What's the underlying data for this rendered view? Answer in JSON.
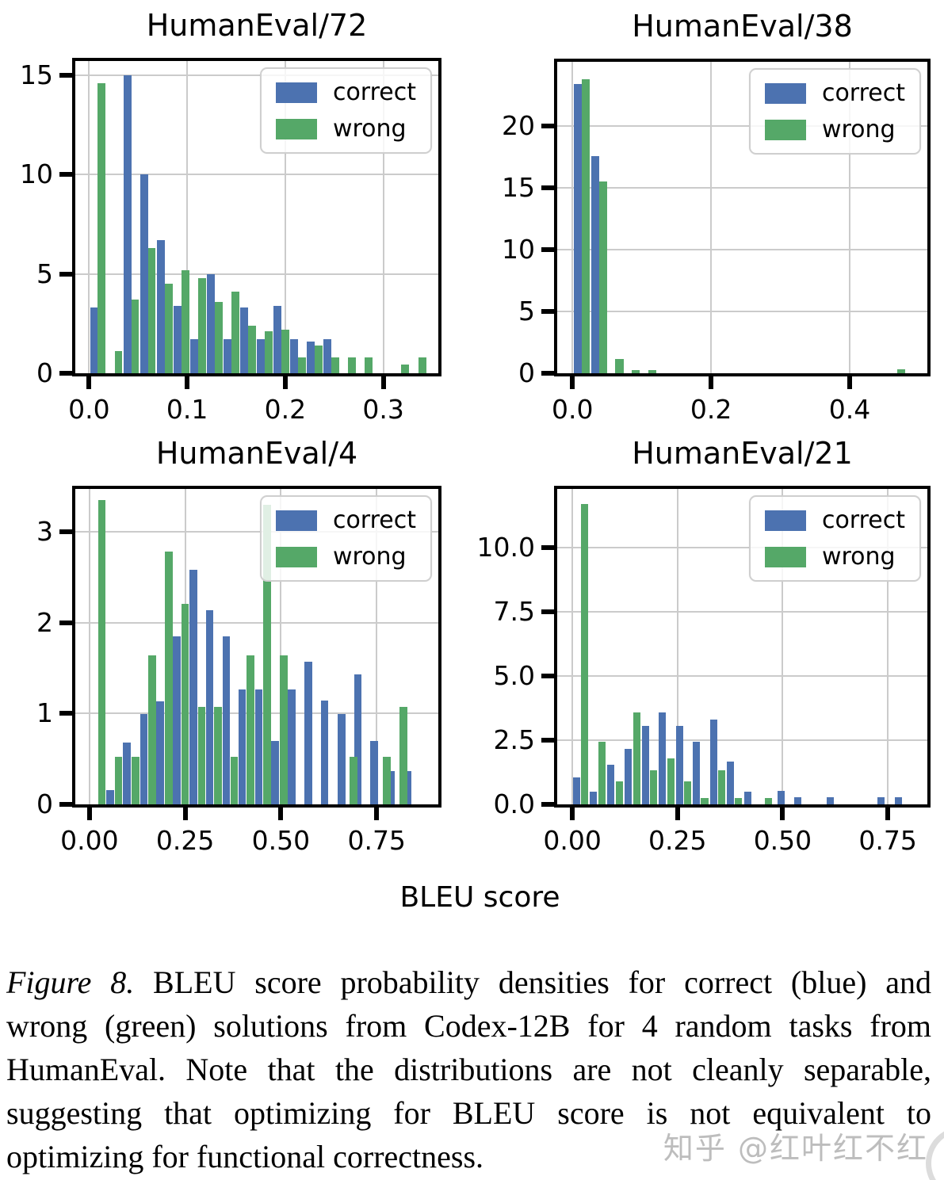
{
  "figure": {
    "xlabel": "BLEU score",
    "caption": {
      "prefix": "Figure 8.",
      "lines": [
        "BLEU score probability densities for correct (blue) and",
        "wrong (green) solutions from Codex-12B for 4 random tasks from",
        "HumanEval. Note that the distributions are not cleanly separable,",
        "suggesting that optimizing for BLEU score is not equivalent to",
        "optimizing for functional correctness."
      ]
    },
    "watermark": "知乎 @红叶红不红"
  },
  "legend_labels": {
    "correct": "correct",
    "wrong": "wrong"
  },
  "colors": {
    "correct": "#4C72B0",
    "wrong": "#55A868",
    "grid": "#cbcbcb",
    "axis": "#000000",
    "watermark": "#bdbdbd"
  },
  "chart_data": [
    {
      "type": "bar",
      "title": "HumanEval/72",
      "xlabel": "BLEU score",
      "ylabel": "",
      "grid": true,
      "legend_position": "upper right",
      "legend": [
        "correct",
        "wrong"
      ],
      "xlim": [
        -0.014,
        0.356
      ],
      "ylim": [
        0,
        15.7
      ],
      "xtick_vals": [
        0.0,
        0.1,
        0.2,
        0.3
      ],
      "xtick_labels": [
        "0.0",
        "0.1",
        "0.2",
        "0.3"
      ],
      "ytick_vals": [
        0,
        5,
        10,
        15
      ],
      "ytick_labels": [
        "0",
        "5",
        "10",
        "15"
      ],
      "bar_width": 0.008,
      "series": [
        {
          "name": "correct",
          "color": "#4C72B0",
          "bars": [
            [
              0.001,
              3.3
            ],
            [
              0.035,
              15.0
            ],
            [
              0.052,
              10.0
            ],
            [
              0.069,
              6.7
            ],
            [
              0.086,
              3.4
            ],
            [
              0.103,
              1.7
            ],
            [
              0.12,
              5.0
            ],
            [
              0.137,
              1.7
            ],
            [
              0.154,
              3.3
            ],
            [
              0.171,
              1.7
            ],
            [
              0.188,
              3.4
            ],
            [
              0.205,
              1.7
            ],
            [
              0.222,
              1.6
            ],
            [
              0.239,
              1.7
            ]
          ]
        },
        {
          "name": "wrong",
          "color": "#55A868",
          "bars": [
            [
              0.009,
              14.6
            ],
            [
              0.026,
              1.1
            ],
            [
              0.043,
              3.7
            ],
            [
              0.06,
              6.3
            ],
            [
              0.077,
              4.5
            ],
            [
              0.094,
              5.2
            ],
            [
              0.111,
              4.8
            ],
            [
              0.128,
              3.6
            ],
            [
              0.145,
              4.1
            ],
            [
              0.162,
              2.4
            ],
            [
              0.179,
              2.1
            ],
            [
              0.196,
              2.2
            ],
            [
              0.213,
              0.8
            ],
            [
              0.23,
              1.4
            ],
            [
              0.247,
              0.8
            ],
            [
              0.264,
              0.8
            ],
            [
              0.281,
              0.8
            ],
            [
              0.318,
              0.45
            ],
            [
              0.336,
              0.8
            ]
          ]
        }
      ]
    },
    {
      "type": "bar",
      "title": "HumanEval/38",
      "xlabel": "BLEU score",
      "ylabel": "",
      "grid": true,
      "legend_position": "upper right",
      "legend": [
        "correct",
        "wrong"
      ],
      "xlim": [
        -0.022,
        0.512
      ],
      "ylim": [
        0,
        25.2
      ],
      "xtick_vals": [
        0.0,
        0.2,
        0.4
      ],
      "xtick_labels": [
        "0.0",
        "0.2",
        "0.4"
      ],
      "ytick_vals": [
        0,
        5,
        10,
        15,
        20
      ],
      "ytick_labels": [
        "0",
        "5",
        "10",
        "15",
        "20"
      ],
      "bar_width": 0.0115,
      "series": [
        {
          "name": "correct",
          "color": "#4C72B0",
          "bars": [
            [
              0.002,
              23.4
            ],
            [
              0.027,
              17.6
            ]
          ]
        },
        {
          "name": "wrong",
          "color": "#55A868",
          "bars": [
            [
              0.0135,
              23.8
            ],
            [
              0.0385,
              15.5
            ],
            [
              0.062,
              1.15
            ],
            [
              0.086,
              0.25
            ],
            [
              0.109,
              0.25
            ],
            [
              0.468,
              0.3
            ]
          ]
        }
      ]
    },
    {
      "type": "bar",
      "title": "HumanEval/4",
      "xlabel": "BLEU score",
      "ylabel": "",
      "grid": true,
      "legend_position": "upper right",
      "legend": [
        "correct",
        "wrong"
      ],
      "xlim": [
        -0.037,
        0.911
      ],
      "ylim": [
        0,
        3.47
      ],
      "xtick_vals": [
        0.0,
        0.25,
        0.5,
        0.75
      ],
      "xtick_labels": [
        "0.00",
        "0.25",
        "0.50",
        "0.75"
      ],
      "ytick_vals": [
        0,
        1,
        2,
        3
      ],
      "ytick_labels": [
        "0",
        "1",
        "2",
        "3"
      ],
      "bar_width": 0.02,
      "series": [
        {
          "name": "correct",
          "color": "#4C72B0",
          "bars": [
            [
              0.044,
              0.16
            ],
            [
              0.088,
              0.68
            ],
            [
              0.132,
              0.99
            ],
            [
              0.175,
              1.13
            ],
            [
              0.218,
              1.85
            ],
            [
              0.261,
              2.58
            ],
            [
              0.304,
              2.14
            ],
            [
              0.347,
              1.85
            ],
            [
              0.389,
              1.26
            ],
            [
              0.432,
              1.26
            ],
            [
              0.475,
              0.7
            ],
            [
              0.518,
              1.26
            ],
            [
              0.561,
              1.57
            ],
            [
              0.604,
              1.14
            ],
            [
              0.648,
              0.99
            ],
            [
              0.691,
              1.43
            ],
            [
              0.734,
              0.7
            ],
            [
              0.777,
              0.37
            ],
            [
              0.82,
              0.37
            ]
          ]
        },
        {
          "name": "wrong",
          "color": "#55A868",
          "bars": [
            [
              0.022,
              3.35
            ],
            [
              0.066,
              0.52
            ],
            [
              0.11,
              0.52
            ],
            [
              0.154,
              1.64
            ],
            [
              0.197,
              2.78
            ],
            [
              0.24,
              2.21
            ],
            [
              0.283,
              1.07
            ],
            [
              0.325,
              1.07
            ],
            [
              0.368,
              0.52
            ],
            [
              0.411,
              1.64
            ],
            [
              0.454,
              3.3
            ],
            [
              0.497,
              1.64
            ],
            [
              0.68,
              0.52
            ],
            [
              0.767,
              0.52
            ],
            [
              0.81,
              1.07
            ]
          ]
        }
      ]
    },
    {
      "type": "bar",
      "title": "HumanEval/21",
      "xlabel": "BLEU score",
      "ylabel": "",
      "grid": true,
      "legend_position": "upper right",
      "legend": [
        "correct",
        "wrong"
      ],
      "xlim": [
        -0.036,
        0.844
      ],
      "ylim": [
        0,
        12.3
      ],
      "xtick_vals": [
        0.0,
        0.25,
        0.5,
        0.75
      ],
      "xtick_labels": [
        "0.00",
        "0.25",
        "0.50",
        "0.75"
      ],
      "ytick_vals": [
        0,
        2.5,
        5,
        7.5,
        10
      ],
      "ytick_labels": [
        "0.0",
        "2.5",
        "5.0",
        "7.5",
        "10.0"
      ],
      "bar_width": 0.017,
      "series": [
        {
          "name": "correct",
          "color": "#4C72B0",
          "bars": [
            [
              0.002,
              1.06
            ],
            [
              0.042,
              0.5
            ],
            [
              0.083,
              1.56
            ],
            [
              0.124,
              2.17
            ],
            [
              0.165,
              3.06
            ],
            [
              0.205,
              3.58
            ],
            [
              0.246,
              3.06
            ],
            [
              0.287,
              2.45
            ],
            [
              0.327,
              3.3
            ],
            [
              0.368,
              1.67
            ],
            [
              0.409,
              0.5
            ],
            [
              0.488,
              0.53
            ],
            [
              0.528,
              0.28
            ],
            [
              0.605,
              0.28
            ],
            [
              0.726,
              0.28
            ],
            [
              0.767,
              0.28
            ]
          ]
        },
        {
          "name": "wrong",
          "color": "#55A868",
          "bars": [
            [
              0.021,
              11.7
            ],
            [
              0.062,
              2.45
            ],
            [
              0.103,
              0.89
            ],
            [
              0.144,
              3.6
            ],
            [
              0.184,
              1.33
            ],
            [
              0.225,
              1.78
            ],
            [
              0.266,
              0.89
            ],
            [
              0.306,
              0.24
            ],
            [
              0.347,
              1.33
            ],
            [
              0.387,
              0.24
            ],
            [
              0.458,
              0.24
            ]
          ]
        }
      ]
    }
  ]
}
